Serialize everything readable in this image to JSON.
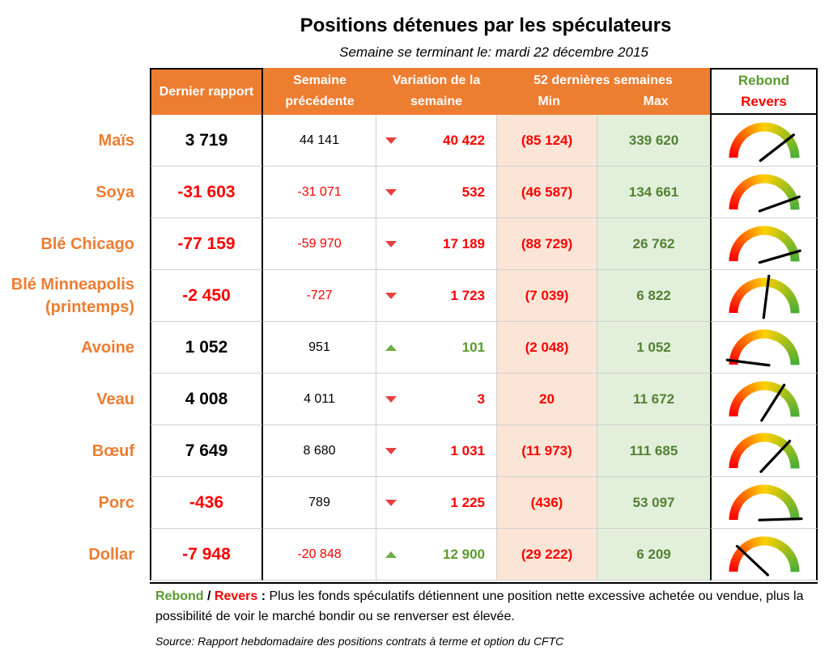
{
  "header": {
    "title": "Positions détenues par les spéculateurs",
    "subtitle": "Semaine se terminant le:  mardi 22 décembre 2015"
  },
  "columns": {
    "last": "Dernier rapport",
    "prev": "Semaine précédente",
    "variation": "Variation de la semaine",
    "range": "52 dernières semaines",
    "min": "Min",
    "max": "Max",
    "rebound": "Rebond",
    "reverse": "Revers"
  },
  "rows": [
    {
      "label": "Maïs",
      "last": "3 719",
      "last_negative": false,
      "prev": "44 141",
      "prev_negative": false,
      "direction": "down",
      "variation": "40 422",
      "min": "(85 124)",
      "max": "339 620",
      "gauge": 0.79
    },
    {
      "label": "Soya",
      "last": "-31 603",
      "last_negative": true,
      "prev": "-31 071",
      "prev_negative": true,
      "direction": "down",
      "variation": "532",
      "min": "(46 587)",
      "max": "134 661",
      "gauge": 0.89
    },
    {
      "label": "Blé Chicago",
      "last": "-77 159",
      "last_negative": true,
      "prev": "-59 970",
      "prev_negative": true,
      "direction": "down",
      "variation": "17 189",
      "min": "(88 729)",
      "max": "26 762",
      "gauge": 0.91
    },
    {
      "label": "Blé Minneapolis (printemps)",
      "last": "-2 450",
      "last_negative": true,
      "prev": "-727",
      "prev_negative": true,
      "direction": "down",
      "variation": "1 723",
      "min": "(7 039)",
      "max": "6 822",
      "gauge": 0.54
    },
    {
      "label": "Avoine",
      "last": "1 052",
      "last_negative": false,
      "prev": "951",
      "prev_negative": false,
      "direction": "up",
      "variation": "101",
      "min": "(2 048)",
      "max": "1 052",
      "gauge": 0.04
    },
    {
      "label": "Veau",
      "last": "4 008",
      "last_negative": false,
      "prev": "4 011",
      "prev_negative": false,
      "direction": "down",
      "variation": "3",
      "min": "20",
      "max": "11 672",
      "gauge": 0.68
    },
    {
      "label": "Bœuf",
      "last": "7 649",
      "last_negative": false,
      "prev": "8 680",
      "prev_negative": false,
      "direction": "down",
      "variation": "1 031",
      "min": "(11 973)",
      "max": "111 685",
      "gauge": 0.74
    },
    {
      "label": "Porc",
      "last": "-436",
      "last_negative": true,
      "prev": "789",
      "prev_negative": false,
      "direction": "down",
      "variation": "1 225",
      "min": "(436)",
      "max": "53 097",
      "gauge": 0.99
    },
    {
      "label": "Dollar",
      "last": "-7 948",
      "last_negative": true,
      "prev": "-20 848",
      "prev_negative": true,
      "direction": "up",
      "variation": "12 900",
      "min": "(29 222)",
      "max": "6 209",
      "gauge": 0.24
    }
  ],
  "note": {
    "rebound": "Rebond",
    "separator": " / ",
    "reverse": "Revers",
    "colon": " :",
    "text": " Plus les fonds spéculatifs détiennent une position nette excessive achetée ou vendue, plus la possibilité de voir le marché bondir ou se renverser est élevée."
  },
  "source": "Source: Rapport hebdomadaire des positions contrats à terme et option du CFTC",
  "colors": {
    "orange": "#ed7d31",
    "negative": "#ff0000",
    "positive": "#5a9a2e",
    "min_bg": "#fbe5d6",
    "max_bg": "#e2efda",
    "gauge_low": "#ff0000",
    "gauge_mid": "#ffd000",
    "gauge_high": "#4caf35"
  }
}
